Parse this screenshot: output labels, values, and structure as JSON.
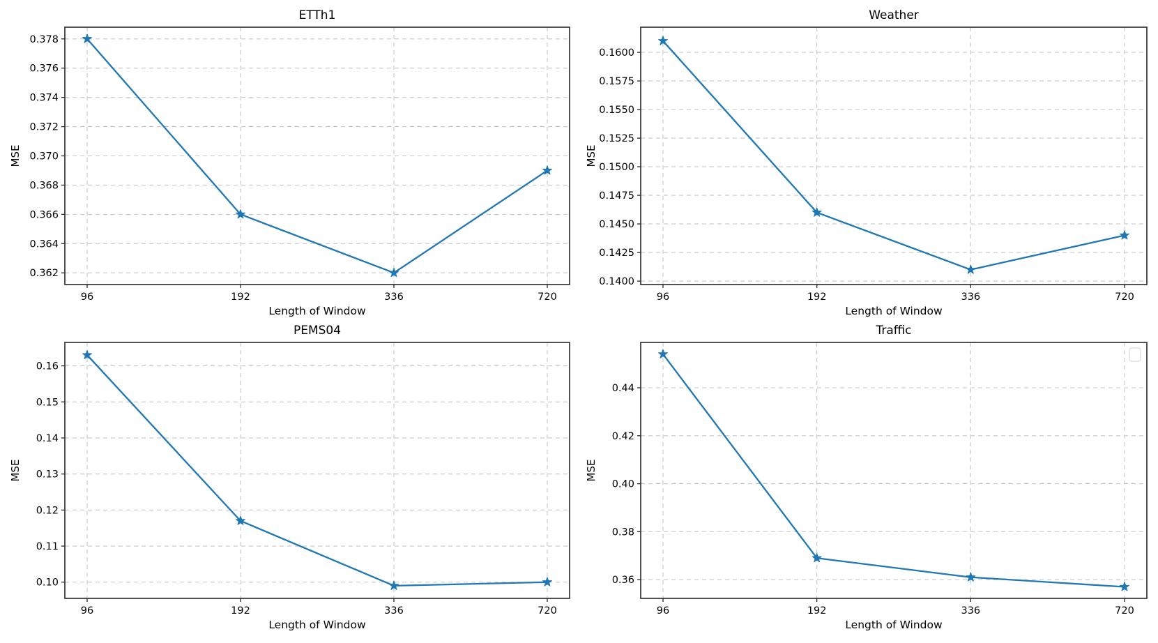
{
  "figure": {
    "background": "#ffffff",
    "accent_color": "#1f77b4",
    "grid_color": "#c6c6c6",
    "spine_color": "#262626",
    "text_color": "#000000"
  },
  "chart_data": [
    {
      "type": "line",
      "title": "ETTh1",
      "xlabel": "Length of Window",
      "ylabel": "MSE",
      "categories": [
        "96",
        "192",
        "336",
        "720"
      ],
      "series": [
        {
          "name": "MSE",
          "values": [
            0.378,
            0.366,
            0.362,
            0.369
          ]
        }
      ],
      "ylim": [
        0.3612,
        0.3788
      ],
      "yticks": [
        0.362,
        0.364,
        0.366,
        0.368,
        0.37,
        0.372,
        0.374,
        0.376,
        0.378
      ],
      "ytick_labels": [
        "0.362",
        "0.364",
        "0.366",
        "0.368",
        "0.370",
        "0.372",
        "0.374",
        "0.376",
        "0.378"
      ],
      "grid": "dashed",
      "marker": "star",
      "legend_empty": false
    },
    {
      "type": "line",
      "title": "Weather",
      "xlabel": "Length of Window",
      "ylabel": "MSE",
      "categories": [
        "96",
        "192",
        "336",
        "720"
      ],
      "series": [
        {
          "name": "MSE",
          "values": [
            0.161,
            0.146,
            0.141,
            0.144
          ]
        }
      ],
      "ylim": [
        0.1397,
        0.1622
      ],
      "yticks": [
        0.14,
        0.1425,
        0.145,
        0.1475,
        0.15,
        0.1525,
        0.155,
        0.1575,
        0.16
      ],
      "ytick_labels": [
        "0.1400",
        "0.1425",
        "0.1450",
        "0.1475",
        "0.1500",
        "0.1525",
        "0.1550",
        "0.1575",
        "0.1600"
      ],
      "grid": "dashed",
      "marker": "star",
      "legend_empty": false
    },
    {
      "type": "line",
      "title": "PEMS04",
      "xlabel": "Length of Window",
      "ylabel": "MSE",
      "categories": [
        "96",
        "192",
        "336",
        "720"
      ],
      "series": [
        {
          "name": "MSE",
          "values": [
            0.163,
            0.117,
            0.099,
            0.1
          ]
        }
      ],
      "ylim": [
        0.0955,
        0.1665
      ],
      "yticks": [
        0.1,
        0.11,
        0.12,
        0.13,
        0.14,
        0.15,
        0.16
      ],
      "ytick_labels": [
        "0.10",
        "0.11",
        "0.12",
        "0.13",
        "0.14",
        "0.15",
        "0.16"
      ],
      "grid": "dashed",
      "marker": "star",
      "legend_empty": false
    },
    {
      "type": "line",
      "title": "Traffic",
      "xlabel": "Length of Window",
      "ylabel": "MSE",
      "categories": [
        "96",
        "192",
        "336",
        "720"
      ],
      "series": [
        {
          "name": "MSE",
          "values": [
            0.454,
            0.369,
            0.361,
            0.357
          ]
        }
      ],
      "ylim": [
        0.3522,
        0.4589
      ],
      "yticks": [
        0.36,
        0.38,
        0.4,
        0.42,
        0.44
      ],
      "ytick_labels": [
        "0.36",
        "0.38",
        "0.40",
        "0.42",
        "0.44"
      ],
      "grid": "dashed",
      "marker": "star",
      "legend_empty": true
    }
  ]
}
